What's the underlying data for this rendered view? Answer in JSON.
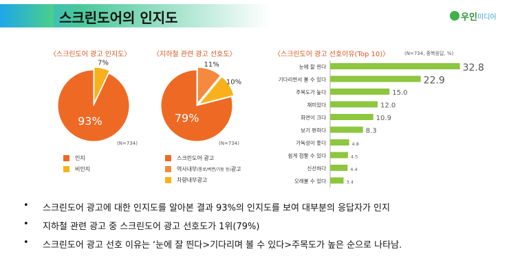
{
  "slide": {
    "title": "스크린도어의 인지도",
    "logo": {
      "name": "우인",
      "sub": "미디어"
    }
  },
  "chart_data": [
    {
      "type": "pie",
      "title": "〈스크린도어 광고 인지도〉",
      "note": "(N=734)",
      "series": [
        {
          "name": "인지",
          "value": 93,
          "label": "93%",
          "color": "#ee6a24"
        },
        {
          "name": "비인지",
          "value": 7,
          "label": "7%",
          "color": "#f7b21b"
        }
      ]
    },
    {
      "type": "pie",
      "title": "〈지하철 관련 광고 선호도〉",
      "note": "(N=734)",
      "series": [
        {
          "name": "스크린도어 광고",
          "value": 79,
          "label": "79%",
          "color": "#ee6a24"
        },
        {
          "name": "역사내부",
          "name_sub": "(통로/벽면/기둥 등)",
          "name_tail": "광고",
          "value": 11,
          "label": "11%",
          "color": "#f58a3d"
        },
        {
          "name": "차량내부광고",
          "value": 10,
          "label": "10%",
          "color": "#f7b21b"
        }
      ]
    },
    {
      "type": "bar",
      "orientation": "horizontal",
      "title": "〈스크린도어 광고 선호이유(Top 10)〉",
      "note": "(N=734, 중복응답, %)",
      "color": "#8dc63f",
      "xlim": [
        0,
        40
      ],
      "categories": [
        "눈에 잘 띈다",
        "기다리면서 볼 수 있다",
        "주목도가 높다",
        "재미있다",
        "화면이 크다",
        "보기 편하다",
        "가독성이 좋다",
        "쉽게 접할 수 있다",
        "신선하다",
        "오래볼 수 있다"
      ],
      "values": [
        32.8,
        22.9,
        15.0,
        12.0,
        10.9,
        8.3,
        4.8,
        4.5,
        4.4,
        3.4
      ],
      "value_labels": [
        "32.8",
        "22.9",
        "15.0",
        "12.0",
        "10.9",
        "8.3",
        "4.8",
        "4.5",
        "4.4",
        "3.4"
      ]
    }
  ],
  "bullets": [
    "스크린도어 광고에 대한 인지도를 알아본 결과 93%의 인지도를 보여 대부분의 응답자가 인지",
    "지하철 관련 광고 중 스크린도어 광고 선호도가 1위(79%)",
    "스크린도어 광고 선호 이유는 ‘눈에 잘 띈다>기다리며 볼 수 있다>주목도가  높은 순으로 나타남."
  ],
  "bullet_symbol": "•"
}
